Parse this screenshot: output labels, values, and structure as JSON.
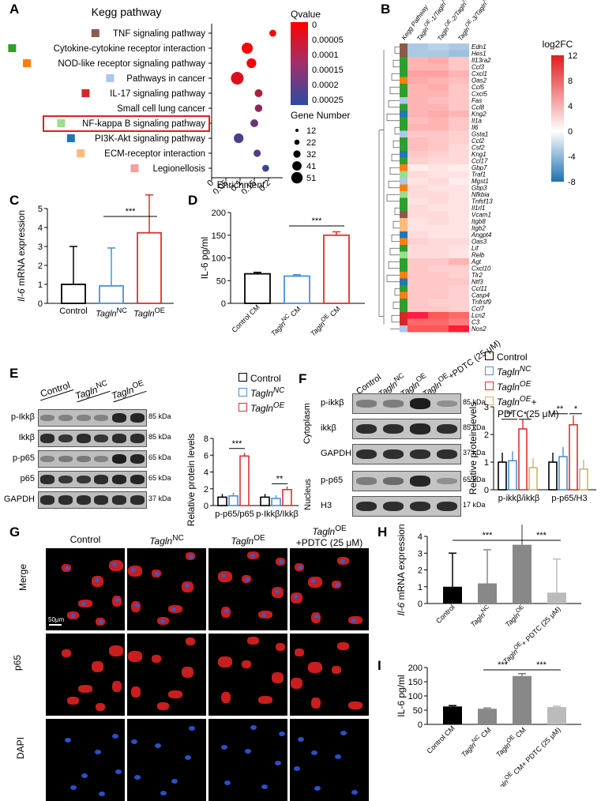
{
  "panel_labels": [
    "A",
    "B",
    "C",
    "D",
    "E",
    "F",
    "G",
    "H",
    "I"
  ],
  "panelA": {
    "title": "Kegg pathway",
    "xlabel": "Enrichment",
    "xticks": [
      "0",
      "0.05",
      "0.1",
      "0.15",
      "0.2"
    ],
    "pathways": [
      {
        "name": "TNF signaling pathway",
        "color": "#8b5a4a",
        "enrich": 0.215,
        "q": 1e-05,
        "genes": 14
      },
      {
        "name": "Cytokine-cytokine receptor interaction",
        "color": "#2ca02c",
        "enrich": 0.125,
        "q": 1e-05,
        "genes": 41
      },
      {
        "name": "NOD-like receptor signaling pathway",
        "color": "#ff7f0e",
        "enrich": 0.14,
        "q": 2e-05,
        "genes": 32
      },
      {
        "name": "Pathways in cancer",
        "color": "#aec7e8",
        "enrich": 0.09,
        "q": 5e-05,
        "genes": 51
      },
      {
        "name": "IL-17 signaling pathway",
        "color": "#d62728",
        "enrich": 0.165,
        "q": 0.00012,
        "genes": 20
      },
      {
        "name": "Small cell lung cancer",
        "color": "",
        "enrich": 0.165,
        "q": 0.00016,
        "genes": 18
      },
      {
        "name": "NF-kappa B signaling pathway",
        "color": "#98df8a",
        "enrich": 0.15,
        "q": 0.00022,
        "genes": 20
      },
      {
        "name": "PI3K-Akt signaling pathway",
        "color": "#1f77b4",
        "enrich": 0.095,
        "q": 0.00026,
        "genes": 32
      },
      {
        "name": "ECM-receptor interaction",
        "color": "#ffbb78",
        "enrich": 0.16,
        "q": 0.00024,
        "genes": 16
      },
      {
        "name": "Legionellosis",
        "color": "#f2a0a0",
        "enrich": 0.19,
        "q": 0.00028,
        "genes": 14
      }
    ],
    "qvalue_title": "Qvalue",
    "qvalue_ticks": [
      "0",
      "0.00005",
      "0.0001",
      "0.00015",
      "0.0002",
      "0.00025"
    ],
    "gene_title": "Gene Number",
    "gene_sizes": [
      "12",
      "22",
      "32",
      "41",
      "51"
    ]
  },
  "panelB": {
    "col_labels": [
      "Kegg Pathway",
      "Tagln<sup>OE</sup>-1/Tagln<sup>NC</sup>-1",
      "Tagln<sup>OE</sup>-2/Tagln<sup>NC</sup>-2",
      "Tagln<sup>OE</sup>-3/Tagln<sup>NC</sup>-3"
    ],
    "legend_title": "log2FC",
    "legend_ticks": [
      "12",
      "8",
      "4",
      "0",
      "-4",
      "-8"
    ],
    "genes": [
      "Edn1",
      "Hes1",
      "Il13ra2",
      "Ccl3",
      "Cxcl1",
      "Oas2",
      "Ccl5",
      "Cxcl5",
      "Fas",
      "Ccl8",
      "Kng2",
      "Il1a",
      "Il6",
      "Gsta1",
      "Ccl2",
      "Csf2",
      "Kng1",
      "Ccl17",
      "Gbp7",
      "Traf1",
      "Mgst1",
      "Gbp3",
      "Nfkbia",
      "Tnfsf13",
      "Il1rl1",
      "Vcam1",
      "Itgb8",
      "Itgb2",
      "Angpt4",
      "Oas3",
      "Lif",
      "Relb",
      "Agt",
      "Cxcl10",
      "Tlr2",
      "Ntf3",
      "Ccl11",
      "Casp4",
      "Tnfrsf9",
      "Ccl7",
      "Lcn2",
      "C3",
      "Nos2"
    ],
    "values": [
      [
        -3,
        -2.5,
        -3
      ],
      [
        -3,
        -3,
        -3.5
      ],
      [
        4,
        4.5,
        3
      ],
      [
        4,
        4,
        3
      ],
      [
        5,
        5,
        4
      ],
      [
        4.5,
        4,
        3.5
      ],
      [
        4,
        4.5,
        3
      ],
      [
        4,
        4,
        3
      ],
      [
        4,
        3.5,
        3
      ],
      [
        4,
        4,
        3
      ],
      [
        4,
        4.5,
        4
      ],
      [
        3.5,
        4,
        3
      ],
      [
        4,
        4,
        3
      ],
      [
        3,
        3,
        2.5
      ],
      [
        3.5,
        3,
        2.5
      ],
      [
        3.5,
        3,
        2
      ],
      [
        3,
        2.5,
        2
      ],
      [
        2.5,
        2,
        2
      ],
      [
        1,
        1.5,
        1
      ],
      [
        2,
        1.5,
        1.5
      ],
      [
        1.5,
        2,
        1
      ],
      [
        2,
        1.5,
        1.5
      ],
      [
        2,
        2,
        1.5
      ],
      [
        1.5,
        2,
        1.5
      ],
      [
        2,
        1.5,
        1.5
      ],
      [
        2,
        2,
        1.5
      ],
      [
        1.5,
        2,
        1.5
      ],
      [
        1.5,
        1.5,
        1.5
      ],
      [
        2,
        1.5,
        1.5
      ],
      [
        2.5,
        2,
        2
      ],
      [
        2,
        2,
        1.5
      ],
      [
        2,
        2,
        1.5
      ],
      [
        3,
        3,
        4
      ],
      [
        3,
        2.5,
        2.5
      ],
      [
        3,
        3,
        2.5
      ],
      [
        3,
        3,
        3
      ],
      [
        3,
        3,
        2.5
      ],
      [
        3,
        3,
        2.5
      ],
      [
        3,
        2.5,
        2.5
      ],
      [
        3,
        3,
        2.5
      ],
      [
        10,
        9,
        8
      ],
      [
        8,
        8,
        7
      ],
      [
        9,
        9,
        11
      ]
    ],
    "path_colors": [
      "#8b5a4a",
      "#8b5a4a",
      "#2ca02c",
      "#2ca02c",
      "#2ca02c",
      "#ff7f0e",
      "#2ca02c",
      "#2ca02c",
      "#aec7e8",
      "#2ca02c",
      "#1f77b4",
      "#2ca02c",
      "#2ca02c",
      "#aec7e8",
      "#2ca02c",
      "#2ca02c",
      "#1f77b4",
      "#2ca02c",
      "#ff7f0e",
      "#98df8a",
      "#aec7e8",
      "#ff7f0e",
      "#98df8a",
      "#2ca02c",
      "#2ca02c",
      "#8b5a4a",
      "#ffbb78",
      "#ffbb78",
      "#1f77b4",
      "#ff7f0e",
      "#2ca02c",
      "#98df8a",
      "#2ca02c",
      "#2ca02c",
      "#ff7f0e",
      "#1f77b4",
      "#2ca02c",
      "#ff7f0e",
      "#2ca02c",
      "#2ca02c",
      "#d62728",
      "#d62728",
      "#aec7e8"
    ]
  },
  "legend_groups": {
    "groupB": [
      "Control",
      "Tagln<sup>NC</sup>",
      "Tagln<sup>OE</sup>",
      "Tagln<sup>OE</sup>+",
      "PDTC (25 μM)"
    ],
    "groupE": [
      "Control",
      "Tagln<sup>NC</sup>",
      "Tagln<sup>OE</sup>"
    ]
  },
  "panelC": {
    "ylabel": "<i>Il-6</i> mRNA expression",
    "yticks": [
      "0",
      "1",
      "2",
      "3",
      "4",
      "5"
    ],
    "categories": [
      "Control",
      "<i>Tagln</i><sup>NC</sup>",
      "<i>Tagln</i><sup>OE</sup>"
    ],
    "values": [
      1,
      0.92,
      3.72
    ],
    "sig": "***"
  },
  "panelD": {
    "ylabel": "IL-6 pg/ml",
    "yticks": [
      "0",
      "50",
      "100",
      "150",
      "200"
    ],
    "categories": [
      "Control CM",
      "<i>Tagln</i><sup>NC</sup> CM",
      "<i>Tagln</i><sup>OE</sup> CM"
    ],
    "values": [
      65,
      60,
      150
    ],
    "sig": "***"
  },
  "panelE": {
    "lane_groups": [
      "Control",
      "<i>Tagln</i><sup>NC</sup>",
      "<i>Tagln</i><sup>OE</sup>"
    ],
    "bands": [
      "p-Ikkβ",
      "Ikkβ",
      "p-p65",
      "p65",
      "GAPDH"
    ],
    "kda": [
      "85 kDa",
      "85 kDa",
      "65 kDa",
      "65 kDa",
      "37 kDa"
    ],
    "ylabel": "Relative protein levels",
    "yticks": [
      "0",
      "2",
      "4",
      "6",
      "8"
    ],
    "categories": [
      "p-p65/p65",
      "p-Ikkβ/Ikkβ"
    ],
    "values": [
      [
        1,
        1.15,
        5.9
      ],
      [
        1,
        0.85,
        1.9
      ]
    ],
    "sig": [
      "***",
      "**"
    ]
  },
  "panelF": {
    "lane_labels": [
      "Control",
      "<i>Tagln</i><sup>NC</sup>",
      "<i>Tagln</i><sup>OE</sup>",
      "<i>Tagln</i><sup>OE</sup>+PDTC (25 μM)"
    ],
    "bands": [
      "p-ikkβ",
      "ikkβ",
      "GAPDH",
      "p-p65",
      "H3"
    ],
    "kda": [
      "85 kDa",
      "85 kDa",
      "37 kDa",
      "65 kDa",
      "17 kDa"
    ],
    "sections": [
      "Cytoplasm",
      "Nucleus"
    ],
    "ylabel": "Relative protein levels",
    "yticks": [
      "0",
      "1",
      "2",
      "3"
    ],
    "categories": [
      "p-ikkβ/ikkβ",
      "p-p65/H3"
    ],
    "values": [
      [
        1,
        1.05,
        2.2,
        0.8
      ],
      [
        1,
        1.2,
        2.35,
        0.75
      ]
    ],
    "sig": [
      "**",
      "*",
      "**",
      "*"
    ]
  },
  "panelG": {
    "columns": [
      "Control",
      "<i>Tagln</i><sup>NC</sup>",
      "<i>Tagln</i><sup>OE</sup>",
      "<i>Tagln</i><sup>OE</sup><br>+PDTC (25 μM)"
    ],
    "rows": [
      "Merge",
      "p65",
      "DAPI"
    ],
    "scale_label": "50μm"
  },
  "panelH": {
    "ylabel": "<i>Il-6</i> mRNA expression",
    "yticks": [
      "0",
      "1",
      "2",
      "3",
      "4"
    ],
    "categories": [
      "Control",
      "<i>Tagln</i><sup>NC</sup>",
      "<i>Tagln</i><sup>OE</sup>",
      "<i>Tagln</i><sup>OE</sup>+ PDTC (25 μM)"
    ],
    "values": [
      1,
      1.2,
      3.5,
      0.65
    ],
    "sig": [
      "***",
      "***"
    ]
  },
  "panelI": {
    "ylabel": "IL-6 pg/ml",
    "yticks": [
      "0",
      "50",
      "100",
      "150",
      "200"
    ],
    "categories": [
      "Control CM",
      "<i>Tagln</i><sup>NC</sup> CM",
      "<i>Tagln</i><sup>OE</sup> CM",
      "<i>Tagln</i><sup>OE</sup> CM+ PDTC (25 μM)"
    ],
    "values": [
      63,
      55,
      170,
      61
    ],
    "sig": [
      "***",
      "***"
    ]
  }
}
